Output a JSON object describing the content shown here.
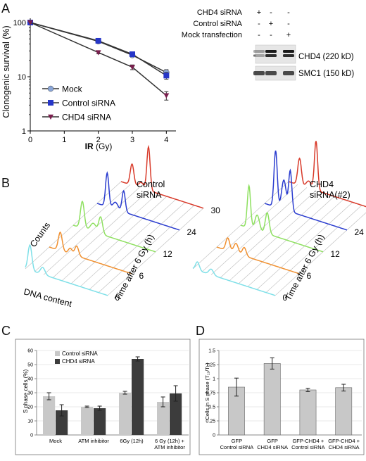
{
  "panel_labels": [
    "A",
    "B",
    "C",
    "D"
  ],
  "chart_data": [
    {
      "panel": "A",
      "type": "line",
      "xlabel_bold": "IR",
      "xlabel_rest": " (Gy)",
      "ylabel": "Clonogenic survival (%)",
      "log_y": true,
      "xlim": [
        0,
        4.2
      ],
      "ylim": [
        1,
        100
      ],
      "x_ticks": [
        "0",
        "1",
        "2",
        "3",
        "4"
      ],
      "y_ticks": [
        "1",
        "10",
        "100"
      ],
      "legend_position": "lower-left",
      "x": [
        0,
        2,
        3,
        4
      ],
      "series": [
        {
          "name": "Mock",
          "color": "#8aa6d8",
          "marker": "circle",
          "values": [
            100,
            45,
            25,
            12
          ],
          "errors": [
            0,
            2,
            2,
            1.5
          ]
        },
        {
          "name": "Control siRNA",
          "color": "#2636c8",
          "marker": "square",
          "values": [
            100,
            46,
            26,
            10.5
          ],
          "errors": [
            0,
            2,
            2,
            1.5
          ]
        },
        {
          "name": "CHD4 siRNA",
          "color": "#7a1f4e",
          "marker": "triangle-down",
          "values": [
            100,
            28,
            15,
            4.5
          ],
          "errors": [
            0,
            1.5,
            1.5,
            0.8
          ]
        }
      ]
    },
    {
      "panel": "C",
      "type": "bar",
      "ylabel": "S phase cells (%)",
      "ylim": [
        0,
        60
      ],
      "y_ticks": [
        "0",
        "10",
        "20",
        "30",
        "40",
        "50",
        "60"
      ],
      "grid": true,
      "legend_position": "top-left",
      "categories": [
        "Mock",
        "ATM inhibitor",
        "6Gy (12h)",
        "6 Gy (12h) +\nATM inhibitor"
      ],
      "series": [
        {
          "name": "Control siRNA",
          "color": "#c8c8c8",
          "values": [
            27.5,
            20,
            30,
            23.5
          ],
          "errors": [
            2.5,
            0.5,
            1,
            3.5
          ]
        },
        {
          "name": "CHD4 siRNA",
          "color": "#3c3c3c",
          "values": [
            17.5,
            19,
            54,
            29.5
          ],
          "errors": [
            4,
            1.5,
            1.5,
            5.5
          ]
        }
      ]
    },
    {
      "panel": "D",
      "type": "bar",
      "ylabel": "Cells in S phase (T₁₂/T₀)",
      "ylim": [
        0,
        1.5
      ],
      "y_ticks": [
        "0",
        "0.25",
        "0.5",
        "0.75",
        "1",
        "1.25",
        "1.5"
      ],
      "grid": true,
      "categories": [
        "GFP\nControl siRNA",
        "GFP\nCHD4 siRNA",
        "GFP-CHD4 +\nControl siRNA",
        "GFP-CHD4 +\nCHD4 siRNA"
      ],
      "series": [
        {
          "name": "",
          "color": "#c8c8c8",
          "values": [
            0.85,
            1.27,
            0.8,
            0.84
          ],
          "errors": [
            0.16,
            0.1,
            0.03,
            0.06
          ]
        }
      ]
    }
  ],
  "blot": {
    "conditions": [
      "CHD4 siRNA",
      "Control siRNA",
      "Mock transfection"
    ],
    "signs": [
      [
        "+",
        "-",
        "-"
      ],
      [
        "-",
        "+",
        "-"
      ],
      [
        "-",
        "-",
        "+"
      ]
    ],
    "bands": [
      "CHD4 (220 kD)",
      "SMC1 (150 kD)"
    ],
    "chd4_band_intensity": [
      0.25,
      1.0,
      1.0
    ],
    "smc1_band_intensity": [
      1.0,
      1.0,
      1.0
    ]
  },
  "flow": {
    "left_title": "Control\nsiRNA",
    "right_title": "CHD4\nsiRNA(#2)",
    "y_label": "Counts",
    "x_label": "DNA content",
    "z_label": "Time after 6 Gy (h)",
    "timepoints": [
      "0",
      "6",
      "12",
      "24",
      "30"
    ],
    "colors": [
      "#7fe0e8",
      "#f09030",
      "#8ee060",
      "#2a3ccf",
      "#d83a2a"
    ]
  }
}
